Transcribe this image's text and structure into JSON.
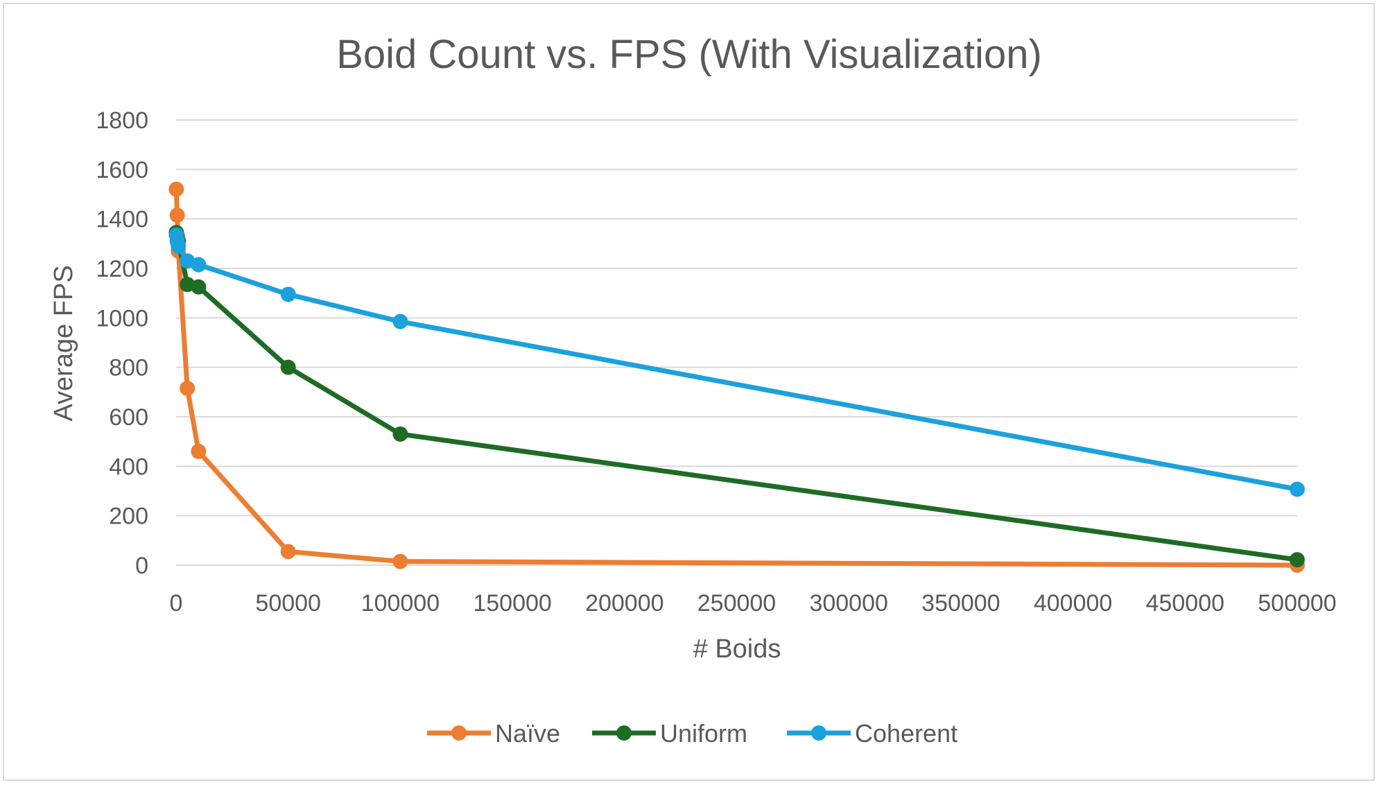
{
  "chart_data": {
    "type": "line",
    "title": "Boid Count vs. FPS (With Visualization)",
    "xlabel": "# Boids",
    "ylabel": "Average FPS",
    "xlim": [
      0,
      500000
    ],
    "ylim": [
      0,
      1800
    ],
    "xticks": [
      0,
      50000,
      100000,
      150000,
      200000,
      250000,
      300000,
      350000,
      400000,
      450000,
      500000
    ],
    "yticks": [
      0,
      200,
      400,
      600,
      800,
      1000,
      1200,
      1400,
      1600,
      1800
    ],
    "grid": true,
    "legend_position": "bottom",
    "series": [
      {
        "name": "Naïve",
        "color": "#ed7d31",
        "points": [
          [
            100,
            1520
          ],
          [
            500,
            1415
          ],
          [
            1000,
            1270
          ],
          [
            5000,
            715
          ],
          [
            10000,
            460
          ],
          [
            50000,
            55
          ],
          [
            100000,
            15
          ],
          [
            500000,
            0
          ]
        ]
      },
      {
        "name": "Uniform",
        "color": "#1e6b24",
        "points": [
          [
            100,
            1345
          ],
          [
            500,
            1330
          ],
          [
            1000,
            1310
          ],
          [
            5000,
            1135
          ],
          [
            10000,
            1125
          ],
          [
            50000,
            800
          ],
          [
            100000,
            530
          ],
          [
            500000,
            22
          ]
        ]
      },
      {
        "name": "Coherent",
        "color": "#1ba1dc",
        "points": [
          [
            100,
            1335
          ],
          [
            500,
            1310
          ],
          [
            1000,
            1290
          ],
          [
            5000,
            1230
          ],
          [
            10000,
            1215
          ],
          [
            50000,
            1095
          ],
          [
            100000,
            985
          ],
          [
            500000,
            307
          ]
        ]
      }
    ]
  }
}
